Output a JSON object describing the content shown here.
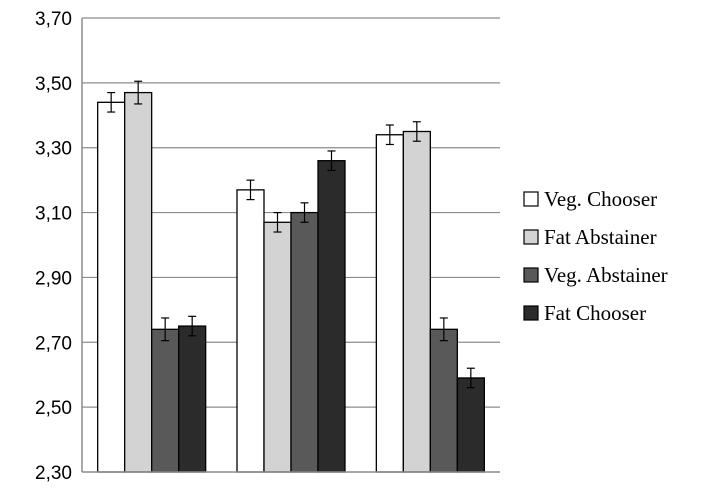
{
  "chart_data": {
    "type": "bar",
    "title": "",
    "xlabel": "",
    "ylabel": "",
    "categories": [
      "",
      "",
      ""
    ],
    "ylim": [
      2.3,
      3.7
    ],
    "yticks": [
      "2,30",
      "2,50",
      "2,70",
      "2,90",
      "3,10",
      "3,30",
      "3,50",
      "3,70"
    ],
    "grid": true,
    "legend_position": "right",
    "series": [
      {
        "name": "Veg. Chooser",
        "color": "#ffffff",
        "values": [
          3.44,
          3.17,
          3.34
        ],
        "errors": [
          0.03,
          0.03,
          0.03
        ]
      },
      {
        "name": "Fat Abstainer",
        "color": "#d3d3d3",
        "values": [
          3.47,
          3.07,
          3.35
        ],
        "errors": [
          0.035,
          0.03,
          0.03
        ]
      },
      {
        "name": "Veg. Abstainer",
        "color": "#595959",
        "values": [
          2.74,
          3.1,
          2.74
        ],
        "errors": [
          0.035,
          0.03,
          0.035
        ]
      },
      {
        "name": "Fat Chooser",
        "color": "#2b2b2b",
        "values": [
          2.75,
          3.26,
          2.59
        ],
        "errors": [
          0.03,
          0.03,
          0.03
        ]
      }
    ]
  }
}
